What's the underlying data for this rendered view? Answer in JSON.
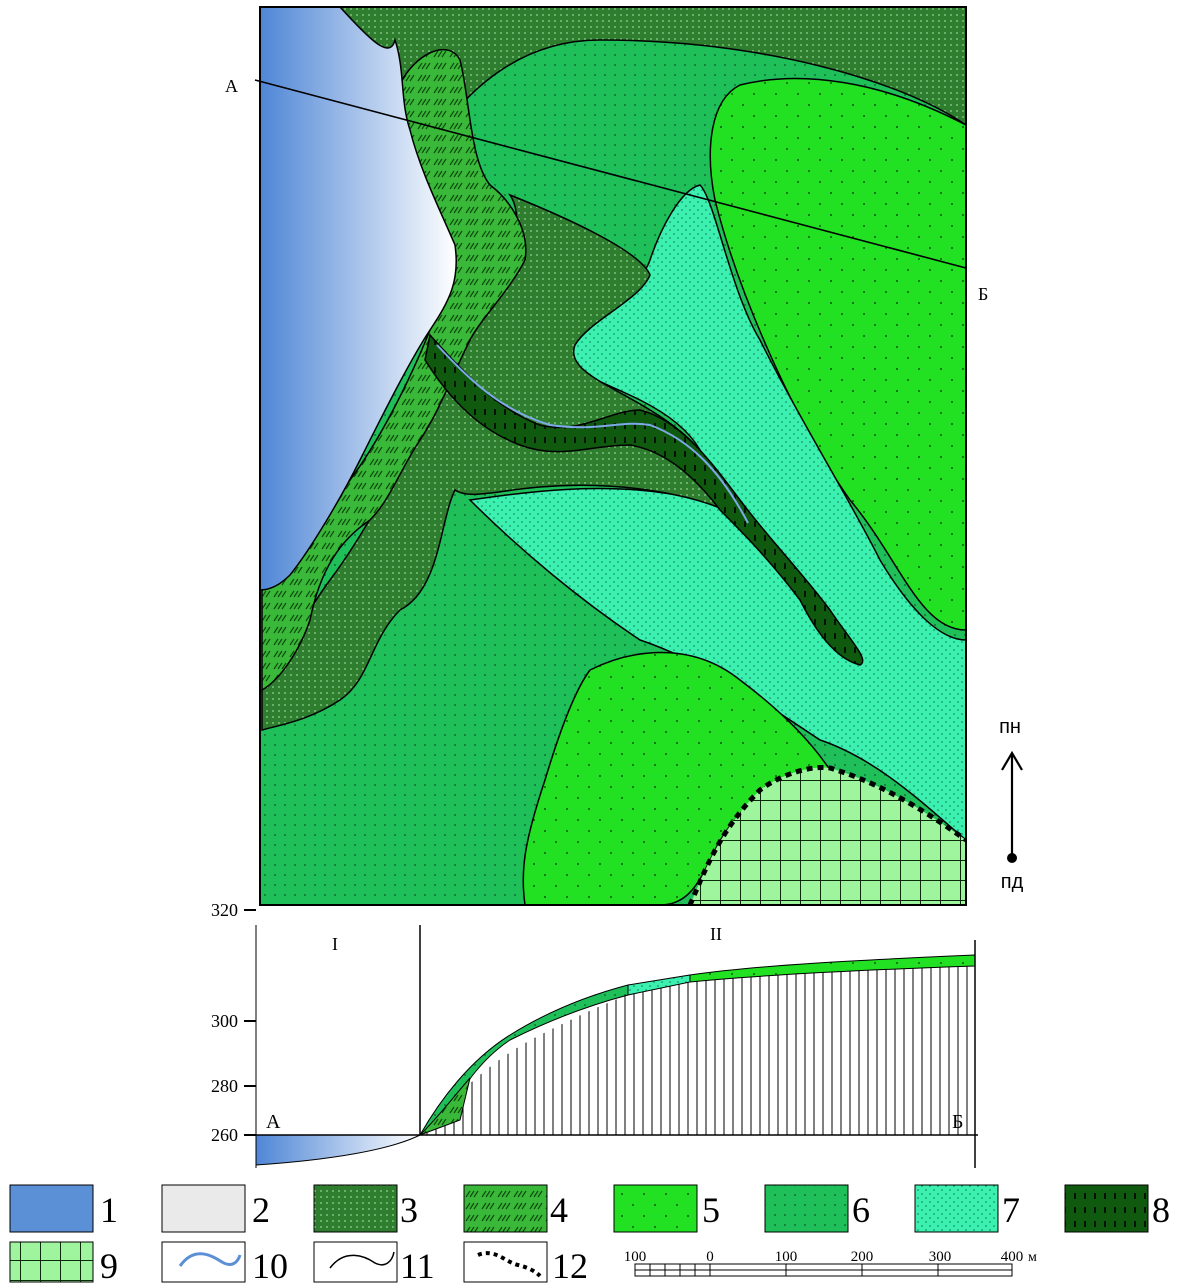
{
  "map": {
    "section_start": "А",
    "section_end": "Б",
    "north_label": "пн",
    "south_label": "пд"
  },
  "profile": {
    "y_ticks": [
      "320",
      "300",
      "280",
      "260"
    ],
    "zone_1": "I",
    "zone_2": "II",
    "start_label": "А",
    "end_label": "Б"
  },
  "legend": {
    "items": [
      {
        "num": "1",
        "color": "#5b8fd6"
      },
      {
        "num": "2",
        "color": "#eaeaea"
      },
      {
        "num": "3",
        "color": "#2f7d2f"
      },
      {
        "num": "4",
        "color": "#3ab83a"
      },
      {
        "num": "5",
        "color": "#22e022"
      },
      {
        "num": "6",
        "color": "#1fbf5a"
      },
      {
        "num": "7",
        "color": "#3cf0b0"
      },
      {
        "num": "8",
        "color": "#0f5a0f"
      },
      {
        "num": "9",
        "color": "#9ef59e"
      },
      {
        "num": "10",
        "color": "#5b8fd6"
      },
      {
        "num": "11",
        "color": "#000000"
      },
      {
        "num": "12",
        "color": "#000000"
      }
    ]
  },
  "scale": {
    "labels": [
      "100",
      "0",
      "100",
      "200",
      "300",
      "400"
    ],
    "unit": "м"
  }
}
